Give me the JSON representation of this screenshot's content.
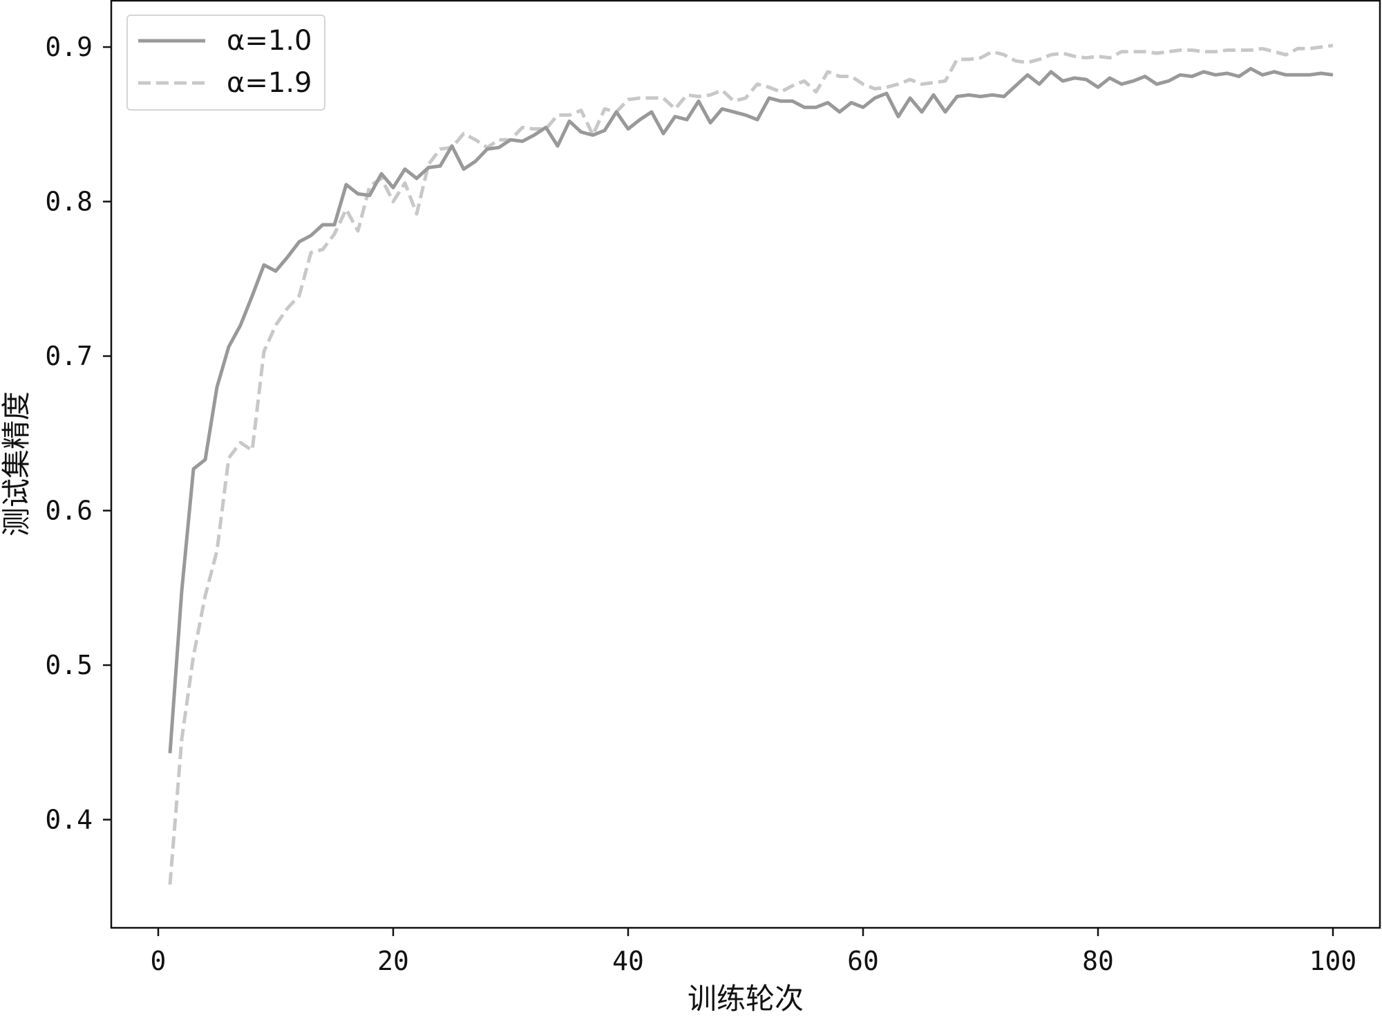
{
  "chart_data": {
    "type": "line",
    "title": "",
    "xlabel": "训练轮次",
    "ylabel": "测试集精度",
    "xlim": [
      -4,
      104
    ],
    "ylim": [
      0.33,
      0.93
    ],
    "x_ticks": [
      0,
      20,
      40,
      60,
      80,
      100
    ],
    "y_ticks": [
      0.4,
      0.5,
      0.6,
      0.7,
      0.8,
      0.9
    ],
    "x_tick_labels": [
      "0",
      "20",
      "40",
      "60",
      "80",
      "100"
    ],
    "y_tick_labels": [
      "0.4",
      "0.5",
      "0.6",
      "0.7",
      "0.8",
      "0.9"
    ],
    "grid": false,
    "legend_position": "top-left",
    "x": [
      1,
      2,
      3,
      4,
      5,
      6,
      7,
      8,
      9,
      10,
      11,
      12,
      13,
      14,
      15,
      16,
      17,
      18,
      19,
      20,
      21,
      22,
      23,
      24,
      25,
      26,
      27,
      28,
      29,
      30,
      31,
      32,
      33,
      34,
      35,
      36,
      37,
      38,
      39,
      40,
      41,
      42,
      43,
      44,
      45,
      46,
      47,
      48,
      49,
      50,
      51,
      52,
      53,
      54,
      55,
      56,
      57,
      58,
      59,
      60,
      61,
      62,
      63,
      64,
      65,
      66,
      67,
      68,
      69,
      70,
      71,
      72,
      73,
      74,
      75,
      76,
      77,
      78,
      79,
      80,
      81,
      82,
      83,
      84,
      85,
      86,
      87,
      88,
      89,
      90,
      91,
      92,
      93,
      94,
      95,
      96,
      97,
      98,
      99,
      100
    ],
    "series": [
      {
        "name": "α=1.0",
        "color": "#999999",
        "dash": "solid",
        "values": [
          0.443,
          0.548,
          0.627,
          0.633,
          0.68,
          0.706,
          0.72,
          0.739,
          0.759,
          0.755,
          0.764,
          0.774,
          0.778,
          0.785,
          0.785,
          0.811,
          0.805,
          0.804,
          0.818,
          0.809,
          0.821,
          0.815,
          0.822,
          0.823,
          0.836,
          0.821,
          0.826,
          0.834,
          0.835,
          0.84,
          0.839,
          0.843,
          0.848,
          0.836,
          0.852,
          0.845,
          0.843,
          0.846,
          0.858,
          0.847,
          0.853,
          0.858,
          0.844,
          0.855,
          0.853,
          0.865,
          0.851,
          0.86,
          0.858,
          0.856,
          0.853,
          0.867,
          0.865,
          0.865,
          0.861,
          0.861,
          0.864,
          0.858,
          0.864,
          0.861,
          0.867,
          0.87,
          0.855,
          0.867,
          0.858,
          0.869,
          0.858,
          0.868,
          0.869,
          0.868,
          0.869,
          0.868,
          0.875,
          0.882,
          0.876,
          0.884,
          0.878,
          0.88,
          0.879,
          0.874,
          0.88,
          0.876,
          0.878,
          0.881,
          0.876,
          0.878,
          0.882,
          0.881,
          0.884,
          0.882,
          0.883,
          0.881,
          0.886,
          0.882,
          0.884,
          0.882,
          0.882,
          0.882,
          0.883,
          0.882
        ]
      },
      {
        "name": "α=1.9",
        "color": "#c8c8c8",
        "dash": "dashed",
        "values": [
          0.358,
          0.452,
          0.506,
          0.545,
          0.574,
          0.634,
          0.644,
          0.639,
          0.703,
          0.72,
          0.731,
          0.739,
          0.767,
          0.769,
          0.779,
          0.795,
          0.781,
          0.81,
          0.815,
          0.8,
          0.812,
          0.792,
          0.824,
          0.834,
          0.835,
          0.844,
          0.84,
          0.835,
          0.84,
          0.84,
          0.848,
          0.847,
          0.847,
          0.856,
          0.856,
          0.859,
          0.843,
          0.86,
          0.858,
          0.866,
          0.867,
          0.867,
          0.867,
          0.86,
          0.869,
          0.868,
          0.869,
          0.872,
          0.865,
          0.867,
          0.876,
          0.874,
          0.871,
          0.875,
          0.878,
          0.871,
          0.884,
          0.881,
          0.881,
          0.876,
          0.873,
          0.874,
          0.876,
          0.879,
          0.876,
          0.877,
          0.878,
          0.892,
          0.892,
          0.893,
          0.897,
          0.895,
          0.891,
          0.89,
          0.892,
          0.895,
          0.896,
          0.894,
          0.893,
          0.894,
          0.893,
          0.897,
          0.897,
          0.897,
          0.896,
          0.897,
          0.898,
          0.898,
          0.897,
          0.897,
          0.898,
          0.898,
          0.898,
          0.899,
          0.897,
          0.895,
          0.899,
          0.899,
          0.9,
          0.901
        ]
      }
    ]
  }
}
